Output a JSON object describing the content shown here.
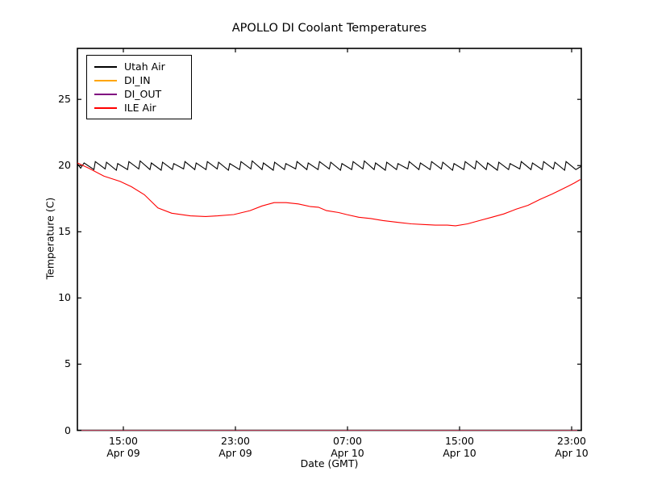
{
  "window": {
    "background": "#ffffff"
  },
  "chart_data": {
    "type": "line",
    "title": "APOLLO DI Coolant Temperatures",
    "xlabel": "Date (GMT)",
    "ylabel": "Temperature (C)",
    "grid": false,
    "legend_position": "upper-left",
    "frame_color": "#000000",
    "x_units": "hours since Apr 09 00:00 GMT",
    "x_range": [
      11.72,
      47.69
    ],
    "ylim": [
      0,
      28.85
    ],
    "y_ticks": [
      0,
      5,
      10,
      15,
      20,
      25
    ],
    "x_ticks": [
      {
        "t": 15,
        "time": "15:00",
        "date": "Apr 09"
      },
      {
        "t": 23,
        "time": "23:00",
        "date": "Apr 09"
      },
      {
        "t": 31,
        "time": "07:00",
        "date": "Apr 10"
      },
      {
        "t": 39,
        "time": "15:00",
        "date": "Apr 10"
      },
      {
        "t": 47,
        "time": "23:00",
        "date": "Apr 10"
      }
    ],
    "series": [
      {
        "name": "Utah Air",
        "color": "#000000",
        "opacity": 1,
        "points": [
          [
            11.72,
            20.15
          ],
          [
            11.95,
            19.8
          ],
          [
            12.2,
            20.2
          ],
          [
            12.9,
            19.7
          ],
          [
            13.0,
            20.3
          ],
          [
            13.7,
            19.75
          ],
          [
            13.8,
            20.25
          ],
          [
            14.5,
            19.65
          ],
          [
            14.6,
            20.15
          ],
          [
            15.3,
            19.7
          ],
          [
            15.4,
            20.3
          ],
          [
            16.1,
            19.75
          ],
          [
            16.2,
            20.35
          ],
          [
            16.9,
            19.7
          ],
          [
            17.0,
            20.2
          ],
          [
            17.7,
            19.65
          ],
          [
            17.8,
            20.25
          ],
          [
            18.5,
            19.7
          ],
          [
            18.6,
            20.15
          ],
          [
            19.3,
            19.75
          ],
          [
            19.4,
            20.3
          ],
          [
            20.1,
            19.7
          ],
          [
            20.2,
            20.2
          ],
          [
            20.9,
            19.7
          ],
          [
            21.0,
            20.3
          ],
          [
            21.7,
            19.75
          ],
          [
            21.8,
            20.25
          ],
          [
            22.5,
            19.65
          ],
          [
            22.6,
            20.15
          ],
          [
            23.3,
            19.7
          ],
          [
            23.4,
            20.3
          ],
          [
            24.1,
            19.75
          ],
          [
            24.2,
            20.35
          ],
          [
            24.9,
            19.7
          ],
          [
            25.0,
            20.2
          ],
          [
            25.7,
            19.65
          ],
          [
            25.8,
            20.25
          ],
          [
            26.5,
            19.7
          ],
          [
            26.6,
            20.15
          ],
          [
            27.3,
            19.75
          ],
          [
            27.4,
            20.3
          ],
          [
            28.1,
            19.7
          ],
          [
            28.2,
            20.2
          ],
          [
            28.9,
            19.7
          ],
          [
            29.0,
            20.3
          ],
          [
            29.7,
            19.75
          ],
          [
            29.8,
            20.25
          ],
          [
            30.5,
            19.65
          ],
          [
            30.6,
            20.15
          ],
          [
            31.3,
            19.7
          ],
          [
            31.4,
            20.3
          ],
          [
            32.1,
            19.75
          ],
          [
            32.2,
            20.35
          ],
          [
            32.9,
            19.7
          ],
          [
            33.0,
            20.2
          ],
          [
            33.7,
            19.65
          ],
          [
            33.8,
            20.25
          ],
          [
            34.5,
            19.7
          ],
          [
            34.6,
            20.15
          ],
          [
            35.3,
            19.75
          ],
          [
            35.4,
            20.3
          ],
          [
            36.1,
            19.7
          ],
          [
            36.2,
            20.2
          ],
          [
            36.9,
            19.7
          ],
          [
            37.0,
            20.3
          ],
          [
            37.7,
            19.75
          ],
          [
            37.8,
            20.25
          ],
          [
            38.5,
            19.65
          ],
          [
            38.6,
            20.15
          ],
          [
            39.3,
            19.7
          ],
          [
            39.4,
            20.3
          ],
          [
            40.1,
            19.75
          ],
          [
            40.2,
            20.35
          ],
          [
            40.9,
            19.7
          ],
          [
            41.0,
            20.2
          ],
          [
            41.7,
            19.65
          ],
          [
            41.8,
            20.25
          ],
          [
            42.5,
            19.7
          ],
          [
            42.6,
            20.15
          ],
          [
            43.3,
            19.75
          ],
          [
            43.4,
            20.3
          ],
          [
            44.1,
            19.7
          ],
          [
            44.2,
            20.2
          ],
          [
            44.9,
            19.7
          ],
          [
            45.0,
            20.3
          ],
          [
            45.7,
            19.75
          ],
          [
            45.8,
            20.25
          ],
          [
            46.5,
            19.65
          ],
          [
            46.6,
            20.3
          ],
          [
            47.3,
            19.7
          ],
          [
            47.69,
            19.95
          ]
        ]
      },
      {
        "name": "DI_IN",
        "color": "#ffa500",
        "opacity": 1,
        "points": [
          [
            11.72,
            0
          ],
          [
            47.69,
            0
          ]
        ]
      },
      {
        "name": "DI_OUT",
        "color": "#800080",
        "opacity": 0.65,
        "points": [
          [
            11.72,
            0
          ],
          [
            47.69,
            0
          ]
        ]
      },
      {
        "name": "ILE Air",
        "color": "#ff0000",
        "opacity": 1,
        "points": [
          [
            11.72,
            20.2
          ],
          [
            12.53,
            19.8
          ],
          [
            13.62,
            19.2
          ],
          [
            14.77,
            18.8
          ],
          [
            15.58,
            18.4
          ],
          [
            16.5,
            17.8
          ],
          [
            17.47,
            16.8
          ],
          [
            18.45,
            16.4
          ],
          [
            19.78,
            16.2
          ],
          [
            20.87,
            16.15
          ],
          [
            21.73,
            16.2
          ],
          [
            22.88,
            16.3
          ],
          [
            24.04,
            16.6
          ],
          [
            24.9,
            16.95
          ],
          [
            25.76,
            17.2
          ],
          [
            26.62,
            17.2
          ],
          [
            27.49,
            17.1
          ],
          [
            28.35,
            16.9
          ],
          [
            28.93,
            16.85
          ],
          [
            29.5,
            16.6
          ],
          [
            30.37,
            16.45
          ],
          [
            30.94,
            16.3
          ],
          [
            31.8,
            16.1
          ],
          [
            32.67,
            16.0
          ],
          [
            33.53,
            15.85
          ],
          [
            34.68,
            15.7
          ],
          [
            35.55,
            15.6
          ],
          [
            36.41,
            15.55
          ],
          [
            37.27,
            15.5
          ],
          [
            38.13,
            15.5
          ],
          [
            38.71,
            15.45
          ],
          [
            39.57,
            15.6
          ],
          [
            40.43,
            15.85
          ],
          [
            41.3,
            16.1
          ],
          [
            42.16,
            16.35
          ],
          [
            43.02,
            16.7
          ],
          [
            43.89,
            17.0
          ],
          [
            44.75,
            17.45
          ],
          [
            45.61,
            17.85
          ],
          [
            46.19,
            18.15
          ],
          [
            46.76,
            18.45
          ],
          [
            47.22,
            18.7
          ],
          [
            47.62,
            18.95
          ]
        ]
      }
    ]
  }
}
